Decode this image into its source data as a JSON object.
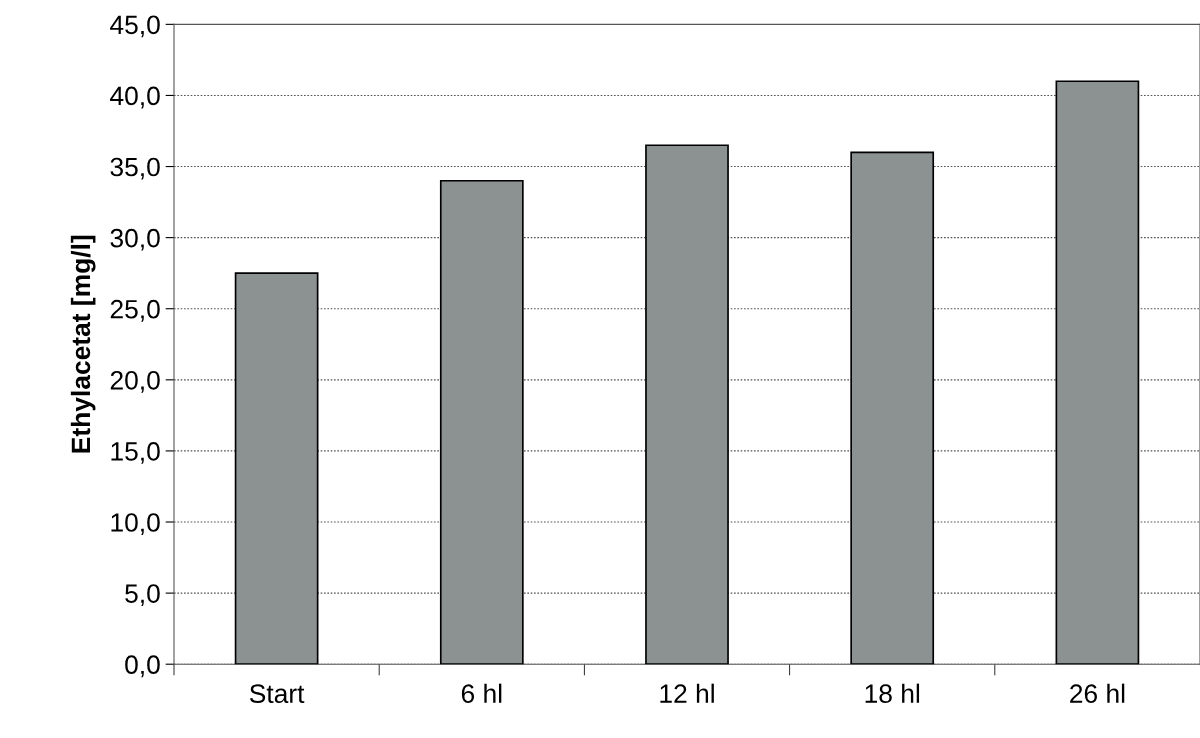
{
  "chart_data": {
    "type": "bar",
    "ylabel": "Ethylacetat [mg/l]",
    "categories": [
      "Start",
      "6 hl",
      "12 hl",
      "18 hl",
      "26 hl"
    ],
    "values": [
      27.5,
      34.0,
      36.5,
      36.0,
      41.0
    ],
    "color": "#8c9192",
    "ylim": [
      0,
      45
    ],
    "yticks": [
      {
        "value": 0,
        "label": "0,0"
      },
      {
        "value": 5,
        "label": "5,0"
      },
      {
        "value": 10,
        "label": "10,0"
      },
      {
        "value": 15,
        "label": "15,0"
      },
      {
        "value": 20,
        "label": "20,0"
      },
      {
        "value": 25,
        "label": "25,0"
      },
      {
        "value": 30,
        "label": "30,0"
      },
      {
        "value": 35,
        "label": "35,0"
      },
      {
        "value": 40,
        "label": "40,0"
      },
      {
        "value": 45,
        "label": "45,0"
      }
    ],
    "grid": "y"
  }
}
